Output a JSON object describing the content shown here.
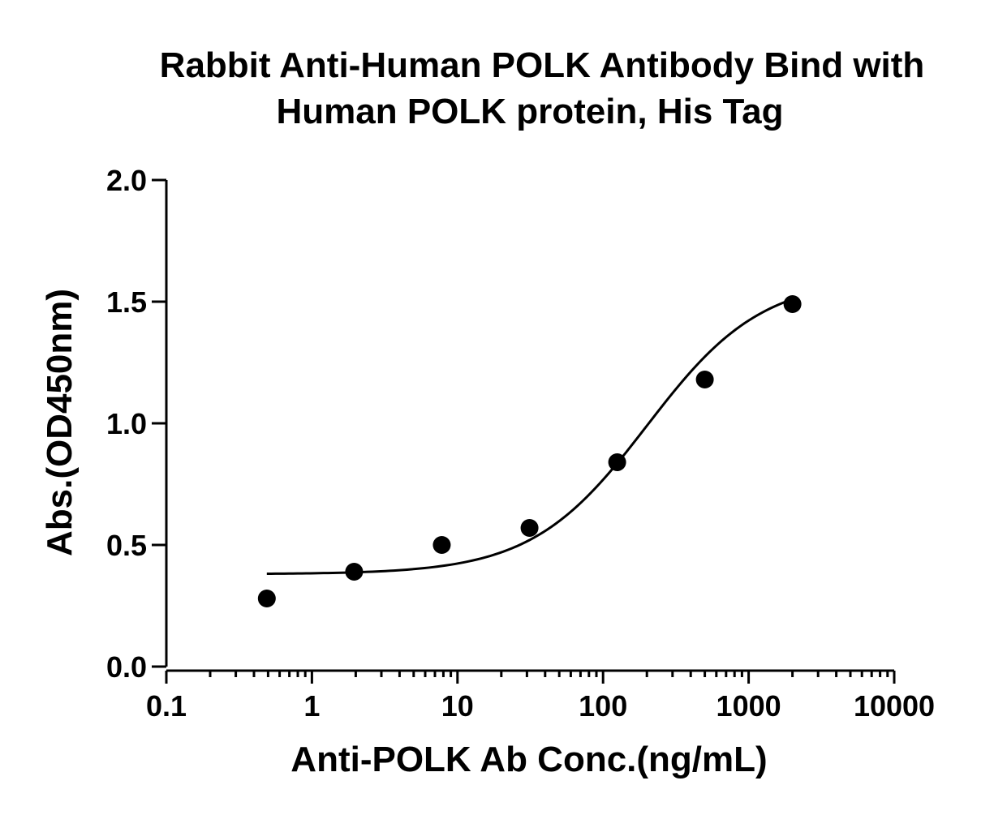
{
  "chart_data": {
    "type": "scatter",
    "title_lines": [
      "Rabbit Anti-Human POLK Antibody Bind with",
      "Human POLK protein, His Tag"
    ],
    "xlabel": "Anti-POLK Ab Conc.(ng/mL)",
    "ylabel": "Abs.(OD450nm)",
    "x_scale": "log",
    "xlim": [
      0.1,
      10000
    ],
    "ylim": [
      0.0,
      2.0
    ],
    "x_ticks": [
      0.1,
      1,
      10,
      100,
      1000,
      10000
    ],
    "x_tick_labels": [
      "0.1",
      "1",
      "10",
      "100",
      "1000",
      "10000"
    ],
    "y_ticks": [
      0.0,
      0.5,
      1.0,
      1.5,
      2.0
    ],
    "y_tick_labels": [
      "0.0",
      "0.5",
      "1.0",
      "1.5",
      "2.0"
    ],
    "grid": false,
    "legend": "none",
    "series": [
      {
        "x": [
          0.49,
          1.95,
          7.8,
          31.25,
          125,
          500,
          2000
        ],
        "y": [
          0.28,
          0.39,
          0.5,
          0.57,
          0.84,
          1.18,
          1.49
        ]
      }
    ],
    "fit_curve": {
      "model": "4PL",
      "bottom": 0.38,
      "top": 1.6,
      "ec50": 200,
      "hill": 1.1,
      "x_range": [
        0.49,
        2000
      ]
    },
    "colors": {
      "points": "#000000",
      "curve": "#000000",
      "axes": "#000000"
    }
  }
}
